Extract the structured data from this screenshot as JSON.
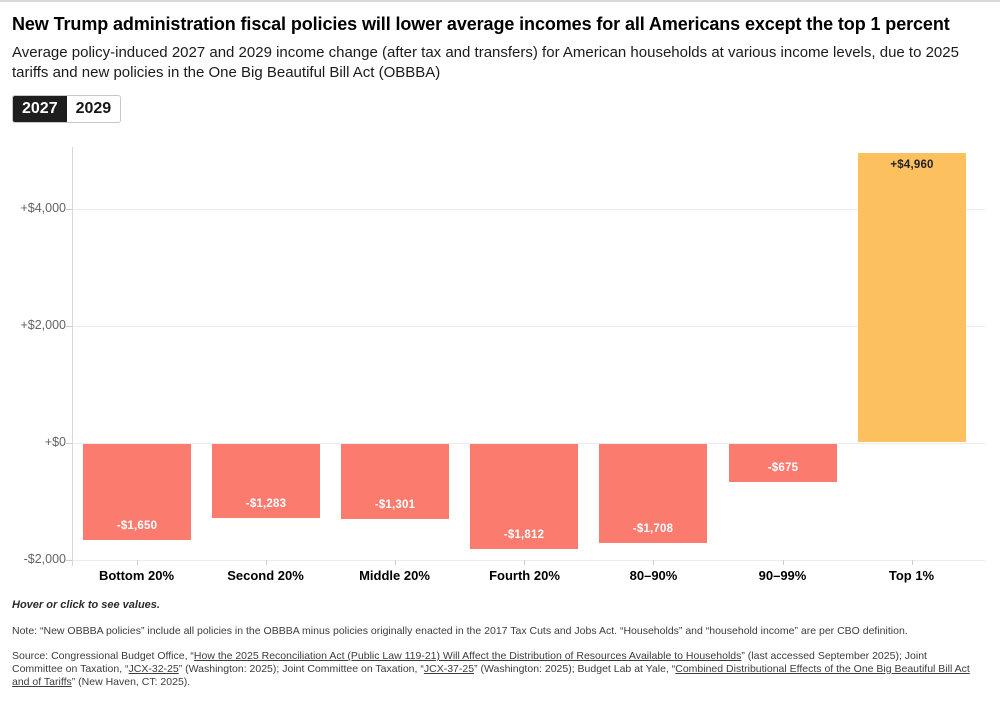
{
  "header": {
    "title": "New Trump administration fiscal policies will lower average incomes for all Americans except the top 1 percent",
    "subtitle": "Average policy-induced 2027 and 2029 income change (after tax and transfers) for American households at various income levels, due to 2025 tariffs and new policies in the One Big Beautiful Bill Act (OBBBA)"
  },
  "toggle": {
    "options": [
      {
        "label": "2027",
        "active": true
      },
      {
        "label": "2029",
        "active": false
      }
    ]
  },
  "chart_data": {
    "type": "bar",
    "selected_view": "2027",
    "categories": [
      "Bottom 20%",
      "Second 20%",
      "Middle 20%",
      "Fourth 20%",
      "80–90%",
      "90–99%",
      "Top 1%"
    ],
    "values": [
      -1650,
      -1283,
      -1301,
      -1812,
      -1708,
      -675,
      4960
    ],
    "value_labels": [
      "-$1,650",
      "-$1,283",
      "-$1,301",
      "-$1,812",
      "-$1,708",
      "-$675",
      "+$4,960"
    ],
    "y_ticks": [
      {
        "value": 4000,
        "label": "+$4,000"
      },
      {
        "value": 2000,
        "label": "+$2,000"
      },
      {
        "value": 0,
        "label": "+$0"
      },
      {
        "value": -2000,
        "label": "-$2,000"
      }
    ],
    "ylim": [
      -2000,
      5060
    ],
    "grid": "horizontal",
    "legend": "none",
    "xlabel": "",
    "ylabel": "",
    "colors": {
      "negative_bar": "#fb7b6f",
      "positive_bar": "#fdc05e",
      "negative_label": "#ffffff",
      "positive_label": "#222222"
    }
  },
  "footer": {
    "hover_note": "Hover or click to see values.",
    "note": "Note: “New OBBBA policies” include all policies in the OBBBA minus policies originally enacted in the 2017 Tax Cuts and Jobs Act. “Households” and “household income” are per CBO definition.",
    "source_segments": [
      {
        "text": "Source: Congressional Budget Office, “",
        "link": false
      },
      {
        "text": "How the 2025 Reconciliation Act (Public Law 119-21) Will Affect the Distribution of Resources Available to Households",
        "link": true
      },
      {
        "text": "” (last accessed September 2025); Joint Committee on Taxation, “",
        "link": false
      },
      {
        "text": "JCX-32-25",
        "link": true
      },
      {
        "text": "” (Washington: 2025); Joint Committee on Taxation, “",
        "link": false
      },
      {
        "text": "JCX-37-25",
        "link": true
      },
      {
        "text": "” (Washington: 2025); Budget Lab at Yale, “",
        "link": false
      },
      {
        "text": "Combined Distributional Effects of the One Big Beautiful Bill Act and of Tariffs",
        "link": true
      },
      {
        "text": "” (New Haven, CT: 2025).",
        "link": false
      }
    ]
  }
}
